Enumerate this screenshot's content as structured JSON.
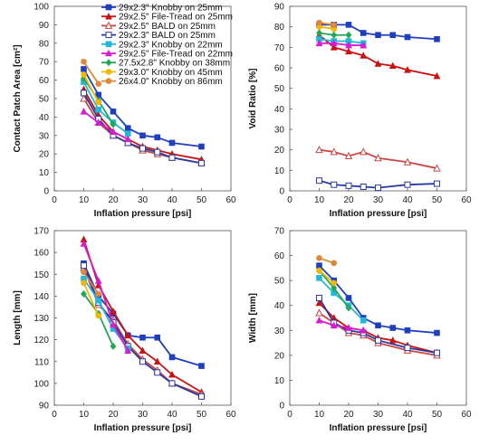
{
  "chart_data": [
    {
      "id": "contact-patch",
      "type": "line",
      "title": "",
      "xlabel": "Inflation pressure [psi]",
      "ylabel": "Contact Patch  Area [cm²]",
      "xlim": [
        0,
        60
      ],
      "ylim": [
        0,
        100
      ],
      "xticks": [
        0,
        10,
        20,
        30,
        40,
        50,
        60
      ],
      "yticks": [
        0,
        10,
        20,
        30,
        40,
        50,
        60,
        70,
        80,
        90,
        100
      ],
      "grid": false,
      "legend": "top",
      "series": [
        {
          "name": "29x2.3\" Knobby on 25mm",
          "color": "#1f3fbf",
          "marker": "square",
          "points": [
            [
              10,
              66
            ],
            [
              15,
              52
            ],
            [
              20,
              43
            ],
            [
              25,
              34
            ],
            [
              30,
              30
            ],
            [
              35,
              29
            ],
            [
              40,
              26
            ],
            [
              50,
              24
            ]
          ]
        },
        {
          "name": "29x2.5\" File-Tread on 25mm",
          "color": "#cc1111",
          "marker": "triangle",
          "points": [
            [
              10,
              55
            ],
            [
              15,
              41
            ],
            [
              20,
              32
            ],
            [
              25,
              28
            ],
            [
              30,
              24
            ],
            [
              35,
              22
            ],
            [
              40,
              20
            ],
            [
              50,
              17
            ]
          ]
        },
        {
          "name": "29x2.5\" BALD on 25mm",
          "color": "#cc4444",
          "marker": "triangle-open",
          "points": [
            [
              10,
              50
            ],
            [
              15,
              37
            ],
            [
              20,
              30
            ],
            [
              25,
              26
            ],
            [
              30,
              22
            ],
            [
              35,
              20
            ],
            [
              40,
              18
            ],
            [
              50,
              15
            ]
          ]
        },
        {
          "name": "29x2.3\" BALD on 25mm",
          "color": "#2a3aa0",
          "marker": "square-open",
          "points": [
            [
              10,
              53
            ],
            [
              15,
              39
            ],
            [
              20,
              30
            ],
            [
              25,
              26
            ],
            [
              30,
              23
            ],
            [
              35,
              21
            ],
            [
              40,
              18
            ],
            [
              50,
              15
            ]
          ]
        },
        {
          "name": "29x2.3\" Knobby on 22mm",
          "color": "#22b8d8",
          "marker": "square",
          "points": [
            [
              10,
              59
            ],
            [
              15,
              44
            ],
            [
              20,
              37
            ],
            [
              25,
              31
            ]
          ]
        },
        {
          "name": "29x2.5\" File-Tread on 22mm",
          "color": "#d81bd0",
          "marker": "triangle",
          "points": [
            [
              10,
              43
            ],
            [
              15,
              37
            ],
            [
              20,
              32
            ],
            [
              25,
              28
            ]
          ]
        },
        {
          "name": "27.5x2.8\" Knobby on 38mm",
          "color": "#22a855",
          "marker": "diamond",
          "points": [
            [
              10,
              61
            ],
            [
              15,
              49
            ],
            [
              20,
              36
            ]
          ]
        },
        {
          "name": "29x3.0\" Knobby on 45mm",
          "color": "#f2b705",
          "marker": "circle",
          "points": [
            [
              10,
              63
            ],
            [
              15,
              48
            ]
          ]
        },
        {
          "name": "26x4.0\" Knobby on 86mm",
          "color": "#e0883a",
          "marker": "circle",
          "points": [
            [
              10,
              70
            ],
            [
              15,
              58
            ]
          ]
        }
      ]
    },
    {
      "id": "void-ratio",
      "type": "line",
      "title": "",
      "xlabel": "Inflation pressure [psi]",
      "ylabel": "Void Ratio [%]",
      "xlim": [
        0,
        60
      ],
      "ylim": [
        0,
        90
      ],
      "xticks": [
        0,
        10,
        20,
        30,
        40,
        50,
        60
      ],
      "yticks": [
        0,
        10,
        20,
        30,
        40,
        50,
        60,
        70,
        80,
        90
      ],
      "grid": false,
      "series": [
        {
          "color": "#1f3fbf",
          "marker": "square",
          "points": [
            [
              10,
              81
            ],
            [
              15,
              81
            ],
            [
              20,
              81
            ],
            [
              25,
              77
            ],
            [
              30,
              76
            ],
            [
              35,
              76
            ],
            [
              40,
              75
            ],
            [
              50,
              74
            ]
          ]
        },
        {
          "color": "#cc1111",
          "marker": "triangle",
          "points": [
            [
              10,
              76
            ],
            [
              15,
              70
            ],
            [
              20,
              68
            ],
            [
              25,
              66
            ],
            [
              30,
              62
            ],
            [
              35,
              61
            ],
            [
              40,
              59
            ],
            [
              50,
              56
            ]
          ]
        },
        {
          "color": "#cc4444",
          "marker": "triangle-open",
          "points": [
            [
              10,
              20
            ],
            [
              15,
              19
            ],
            [
              20,
              17
            ],
            [
              25,
              19
            ],
            [
              30,
              16
            ],
            [
              40,
              14
            ],
            [
              50,
              11
            ]
          ]
        },
        {
          "color": "#2a3aa0",
          "marker": "square-open",
          "points": [
            [
              10,
              5
            ],
            [
              15,
              3
            ],
            [
              20,
              2.5
            ],
            [
              25,
              2
            ],
            [
              30,
              1.5
            ],
            [
              40,
              3
            ],
            [
              50,
              3.5
            ]
          ]
        },
        {
          "color": "#22b8d8",
          "marker": "square",
          "points": [
            [
              10,
              74
            ],
            [
              15,
              73
            ],
            [
              20,
              73
            ],
            [
              25,
              72
            ]
          ]
        },
        {
          "color": "#d81bd0",
          "marker": "triangle",
          "points": [
            [
              10,
              72
            ],
            [
              15,
              72
            ],
            [
              20,
              71
            ],
            [
              25,
              71
            ]
          ]
        },
        {
          "color": "#22a855",
          "marker": "diamond",
          "points": [
            [
              10,
              77
            ],
            [
              15,
              76
            ],
            [
              20,
              76
            ]
          ]
        },
        {
          "color": "#f2b705",
          "marker": "circle",
          "points": [
            [
              10,
              80
            ],
            [
              15,
              79
            ]
          ]
        },
        {
          "color": "#e0883a",
          "marker": "circle",
          "points": [
            [
              10,
              82
            ],
            [
              15,
              81
            ]
          ]
        }
      ]
    },
    {
      "id": "length",
      "type": "line",
      "title": "",
      "xlabel": "Inflation pressure [psi]",
      "ylabel": "Length [mm]",
      "xlim": [
        0,
        60
      ],
      "ylim": [
        90,
        170
      ],
      "xticks": [
        0,
        10,
        20,
        30,
        40,
        50,
        60
      ],
      "yticks": [
        90,
        100,
        110,
        120,
        130,
        140,
        150,
        160,
        170
      ],
      "grid": false,
      "series": [
        {
          "color": "#1f3fbf",
          "marker": "square",
          "points": [
            [
              10,
              155
            ],
            [
              15,
              140
            ],
            [
              20,
              132
            ],
            [
              25,
              122
            ],
            [
              30,
              121
            ],
            [
              35,
              121
            ],
            [
              40,
              112
            ],
            [
              50,
              108
            ]
          ]
        },
        {
          "color": "#cc1111",
          "marker": "triangle",
          "points": [
            [
              10,
              166
            ],
            [
              15,
              145
            ],
            [
              20,
              133
            ],
            [
              25,
              122
            ],
            [
              30,
              115
            ],
            [
              35,
              110
            ],
            [
              40,
              104
            ],
            [
              50,
              96
            ]
          ]
        },
        {
          "color": "#cc4444",
          "marker": "triangle-open",
          "points": [
            [
              10,
              153
            ],
            [
              15,
              136
            ],
            [
              20,
              129
            ],
            [
              25,
              118
            ],
            [
              30,
              111
            ],
            [
              35,
              106
            ],
            [
              40,
              100
            ],
            [
              50,
              95
            ]
          ]
        },
        {
          "color": "#2a3aa0",
          "marker": "square-open",
          "points": [
            [
              10,
              154
            ],
            [
              15,
              137
            ],
            [
              20,
              128
            ],
            [
              25,
              117
            ],
            [
              30,
              110
            ],
            [
              35,
              105
            ],
            [
              40,
              100
            ],
            [
              50,
              94
            ]
          ]
        },
        {
          "color": "#22b8d8",
          "marker": "square",
          "points": [
            [
              10,
              148
            ],
            [
              15,
              138
            ],
            [
              20,
              125
            ],
            [
              25,
              116
            ]
          ]
        },
        {
          "color": "#d81bd0",
          "marker": "triangle",
          "points": [
            [
              10,
              164
            ],
            [
              15,
              147
            ],
            [
              20,
              127
            ],
            [
              25,
              115
            ]
          ]
        },
        {
          "color": "#22a855",
          "marker": "diamond",
          "points": [
            [
              10,
              141
            ],
            [
              15,
              132
            ],
            [
              20,
              117
            ]
          ]
        },
        {
          "color": "#f2b705",
          "marker": "circle",
          "points": [
            [
              10,
              146
            ],
            [
              15,
              131
            ]
          ]
        },
        {
          "color": "#e0883a",
          "marker": "circle",
          "points": [
            [
              10,
              151
            ],
            [
              15,
              141
            ]
          ]
        }
      ]
    },
    {
      "id": "width",
      "type": "line",
      "title": "",
      "xlabel": "Inflation pressure [psi]",
      "ylabel": "Width [mm]",
      "xlim": [
        0,
        60
      ],
      "ylim": [
        0,
        70
      ],
      "xticks": [
        0,
        10,
        20,
        30,
        40,
        50,
        60
      ],
      "yticks": [
        0,
        10,
        20,
        30,
        40,
        50,
        60,
        70
      ],
      "grid": false,
      "series": [
        {
          "color": "#1f3fbf",
          "marker": "square",
          "points": [
            [
              10,
              56
            ],
            [
              15,
              50
            ],
            [
              20,
              43
            ],
            [
              25,
              35
            ],
            [
              30,
              32
            ],
            [
              35,
              31
            ],
            [
              40,
              30
            ],
            [
              50,
              29
            ]
          ]
        },
        {
          "color": "#cc1111",
          "marker": "triangle",
          "points": [
            [
              10,
              41
            ],
            [
              15,
              35
            ],
            [
              20,
              31
            ],
            [
              25,
              30
            ],
            [
              30,
              27
            ],
            [
              35,
              26
            ],
            [
              40,
              24
            ],
            [
              50,
              21
            ]
          ]
        },
        {
          "color": "#cc4444",
          "marker": "triangle-open",
          "points": [
            [
              10,
              37
            ],
            [
              15,
              33
            ],
            [
              20,
              29
            ],
            [
              25,
              28
            ],
            [
              30,
              25
            ],
            [
              40,
              22
            ],
            [
              50,
              20
            ]
          ]
        },
        {
          "color": "#2a3aa0",
          "marker": "square-open",
          "points": [
            [
              10,
              43
            ],
            [
              15,
              33
            ],
            [
              20,
              30
            ],
            [
              25,
              29
            ],
            [
              30,
              26
            ],
            [
              40,
              23
            ],
            [
              50,
              21
            ]
          ]
        },
        {
          "color": "#22b8d8",
          "marker": "square",
          "points": [
            [
              10,
              51
            ],
            [
              15,
              45
            ],
            [
              20,
              40
            ],
            [
              25,
              34
            ]
          ]
        },
        {
          "color": "#d81bd0",
          "marker": "triangle",
          "points": [
            [
              10,
              34
            ],
            [
              15,
              32
            ],
            [
              20,
              31
            ],
            [
              25,
              30
            ]
          ]
        },
        {
          "color": "#22a855",
          "marker": "diamond",
          "points": [
            [
              10,
              54
            ],
            [
              15,
              47
            ],
            [
              20,
              39
            ]
          ]
        },
        {
          "color": "#f2b705",
          "marker": "circle",
          "points": [
            [
              10,
              54
            ],
            [
              15,
              49
            ]
          ]
        },
        {
          "color": "#e0883a",
          "marker": "circle",
          "points": [
            [
              10,
              59
            ],
            [
              15,
              57
            ]
          ]
        }
      ]
    }
  ]
}
